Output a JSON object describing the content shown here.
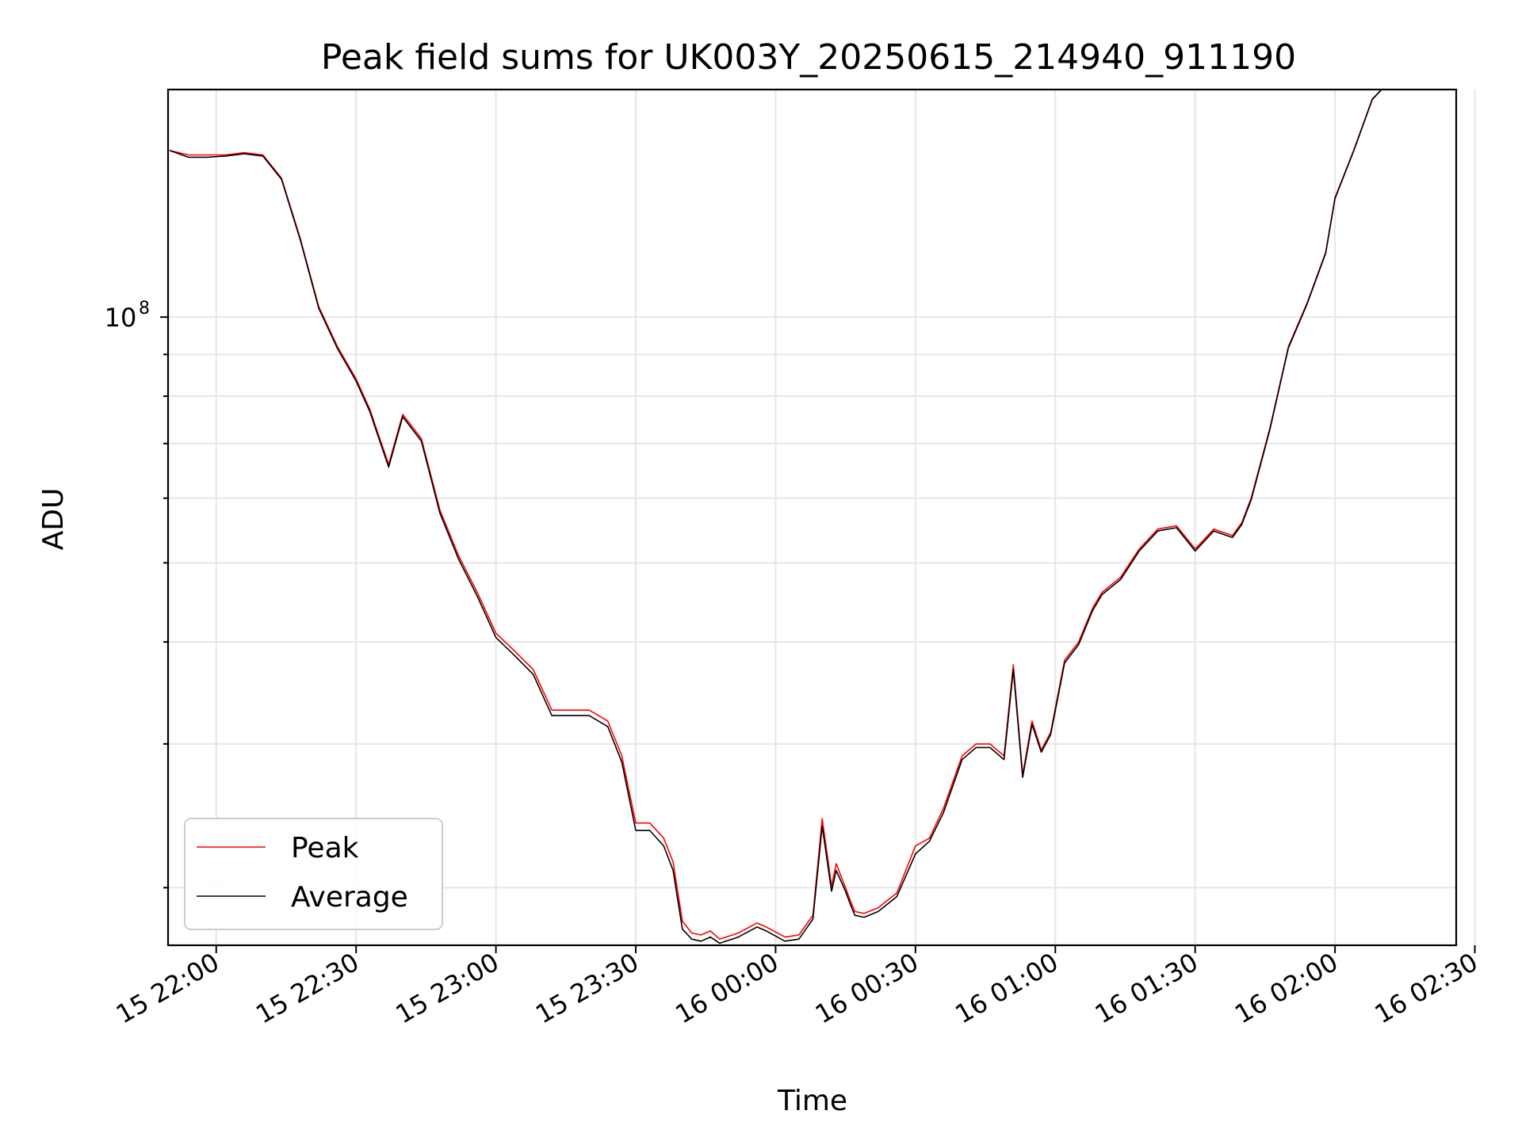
{
  "chart_data": {
    "type": "line",
    "title": "Peak field sums for UK003Y_20250615_214940_911190",
    "xlabel": "Time",
    "ylabel": "ADU",
    "yscale": "log",
    "grid": true,
    "legend_position": "lower-left",
    "xlim": [
      "2025-06-15T21:49:40",
      "2025-06-16T02:26:00"
    ],
    "ylim": [
      17000000,
      190000000
    ],
    "x_ticks": [
      "15 22:00",
      "15 22:30",
      "15 23:00",
      "15 23:30",
      "16 00:00",
      "16 00:30",
      "16 01:00",
      "16 01:30",
      "16 02:00",
      "16 02:30"
    ],
    "y_tick_label": "10",
    "y_tick_exponent": "8",
    "series": [
      {
        "name": "Peak",
        "color": "#ff0000",
        "x": [
          "2025-06-15T21:50",
          "2025-06-15T21:54",
          "2025-06-15T21:58",
          "2025-06-15T22:02",
          "2025-06-15T22:06",
          "2025-06-15T22:10",
          "2025-06-15T22:14",
          "2025-06-15T22:18",
          "2025-06-15T22:22",
          "2025-06-15T22:26",
          "2025-06-15T22:30",
          "2025-06-15T22:33",
          "2025-06-15T22:34",
          "2025-06-15T22:37",
          "2025-06-15T22:40",
          "2025-06-15T22:44",
          "2025-06-15T22:48",
          "2025-06-15T22:52",
          "2025-06-15T22:56",
          "2025-06-15T23:00",
          "2025-06-15T23:04",
          "2025-06-15T23:08",
          "2025-06-15T23:12",
          "2025-06-15T23:16",
          "2025-06-15T23:20",
          "2025-06-15T23:24",
          "2025-06-15T23:27",
          "2025-06-15T23:30",
          "2025-06-15T23:33",
          "2025-06-15T23:36",
          "2025-06-15T23:38",
          "2025-06-15T23:40",
          "2025-06-15T23:42",
          "2025-06-15T23:44",
          "2025-06-15T23:46",
          "2025-06-15T23:48",
          "2025-06-15T23:52",
          "2025-06-15T23:56",
          "2025-06-15T23:58",
          "2025-06-16T00:02",
          "2025-06-16T00:05",
          "2025-06-16T00:08",
          "2025-06-16T00:10",
          "2025-06-16T00:12",
          "2025-06-16T00:13",
          "2025-06-16T00:15",
          "2025-06-16T00:16",
          "2025-06-16T00:17",
          "2025-06-16T00:19",
          "2025-06-16T00:22",
          "2025-06-16T00:26",
          "2025-06-16T00:30",
          "2025-06-16T00:33",
          "2025-06-16T00:36",
          "2025-06-16T00:40",
          "2025-06-16T00:43",
          "2025-06-16T00:46",
          "2025-06-16T00:49",
          "2025-06-16T00:51",
          "2025-06-16T00:53",
          "2025-06-16T00:55",
          "2025-06-16T00:57",
          "2025-06-16T00:59",
          "2025-06-16T01:02",
          "2025-06-16T01:05",
          "2025-06-16T01:08",
          "2025-06-16T01:10",
          "2025-06-16T01:14",
          "2025-06-16T01:18",
          "2025-06-16T01:22",
          "2025-06-16T01:26",
          "2025-06-16T01:30",
          "2025-06-16T01:34",
          "2025-06-16T01:38",
          "2025-06-16T01:40",
          "2025-06-16T01:42",
          "2025-06-16T01:46",
          "2025-06-16T01:50",
          "2025-06-16T01:54",
          "2025-06-16T01:58",
          "2025-06-16T02:00",
          "2025-06-16T02:04",
          "2025-06-16T02:08",
          "2025-06-16T02:10",
          "2025-06-16T02:14",
          "2025-06-16T02:18",
          "2025-06-16T02:22",
          "2025-06-16T02:26"
        ],
        "values": [
          160000000,
          158000000,
          158000000,
          158000000,
          159000000,
          158000000,
          148000000,
          125000000,
          103000000,
          92000000,
          84000000,
          77000000,
          74000000,
          66000000,
          76000000,
          71000000,
          58000000,
          51000000,
          46000000,
          41000000,
          39000000,
          37000000,
          33000000,
          33000000,
          33000000,
          32000000,
          29000000,
          24000000,
          24000000,
          23000000,
          21500000,
          18200000,
          17600000,
          17500000,
          17700000,
          17300000,
          17600000,
          18100000,
          17900000,
          17400000,
          17500000,
          18500000,
          24300000,
          20100000,
          21400000,
          20000000,
          19300000,
          18700000,
          18600000,
          18900000,
          19700000,
          22500000,
          23000000,
          25000000,
          29000000,
          30000000,
          30000000,
          29000000,
          37500000,
          27500000,
          32000000,
          29500000,
          31000000,
          38000000,
          40000000,
          44000000,
          46000000,
          48000000,
          52000000,
          55000000,
          55500000,
          52000000,
          55000000,
          54000000,
          56000000,
          60000000,
          73000000,
          92000000,
          104000000,
          120000000,
          140000000,
          160000000,
          185000000,
          190000000,
          190000000,
          190000000,
          190000000,
          190000000
        ],
        "note": ""
      },
      {
        "name": "Average",
        "color": "#000000",
        "x": [
          "2025-06-15T21:50",
          "2025-06-15T21:54",
          "2025-06-15T21:58",
          "2025-06-15T22:02",
          "2025-06-15T22:06",
          "2025-06-15T22:10",
          "2025-06-15T22:14",
          "2025-06-15T22:18",
          "2025-06-15T22:22",
          "2025-06-15T22:26",
          "2025-06-15T22:30",
          "2025-06-15T22:33",
          "2025-06-15T22:34",
          "2025-06-15T22:37",
          "2025-06-15T22:40",
          "2025-06-15T22:44",
          "2025-06-15T22:48",
          "2025-06-15T22:52",
          "2025-06-15T22:56",
          "2025-06-15T23:00",
          "2025-06-15T23:04",
          "2025-06-15T23:08",
          "2025-06-15T23:12",
          "2025-06-15T23:16",
          "2025-06-15T23:20",
          "2025-06-15T23:24",
          "2025-06-15T23:27",
          "2025-06-15T23:30",
          "2025-06-15T23:33",
          "2025-06-15T23:36",
          "2025-06-15T23:38",
          "2025-06-15T23:40",
          "2025-06-15T23:42",
          "2025-06-15T23:44",
          "2025-06-15T23:46",
          "2025-06-15T23:48",
          "2025-06-15T23:52",
          "2025-06-15T23:56",
          "2025-06-15T23:58",
          "2025-06-16T00:02",
          "2025-06-16T00:05",
          "2025-06-16T00:08",
          "2025-06-16T00:10",
          "2025-06-16T00:12",
          "2025-06-16T00:13",
          "2025-06-16T00:15",
          "2025-06-16T00:16",
          "2025-06-16T00:17",
          "2025-06-16T00:19",
          "2025-06-16T00:22",
          "2025-06-16T00:26",
          "2025-06-16T00:30",
          "2025-06-16T00:33",
          "2025-06-16T00:36",
          "2025-06-16T00:40",
          "2025-06-16T00:43",
          "2025-06-16T00:46",
          "2025-06-16T00:49",
          "2025-06-16T00:51",
          "2025-06-16T00:53",
          "2025-06-16T00:55",
          "2025-06-16T00:57",
          "2025-06-16T00:59",
          "2025-06-16T01:02",
          "2025-06-16T01:05",
          "2025-06-16T01:08",
          "2025-06-16T01:10",
          "2025-06-16T01:14",
          "2025-06-16T01:18",
          "2025-06-16T01:22",
          "2025-06-16T01:26",
          "2025-06-16T01:30",
          "2025-06-16T01:34",
          "2025-06-16T01:38",
          "2025-06-16T01:40",
          "2025-06-16T01:42",
          "2025-06-16T01:46",
          "2025-06-16T01:50",
          "2025-06-16T01:54",
          "2025-06-16T01:58",
          "2025-06-16T02:00",
          "2025-06-16T02:04",
          "2025-06-16T02:08",
          "2025-06-16T02:10",
          "2025-06-16T02:14",
          "2025-06-16T02:18",
          "2025-06-16T02:22",
          "2025-06-16T02:26"
        ],
        "values": [
          160000000,
          157000000,
          157000000,
          157500000,
          158500000,
          157500000,
          147500000,
          124500000,
          102500000,
          91500000,
          83500000,
          76500000,
          73500000,
          65500000,
          75500000,
          70500000,
          57500000,
          50500000,
          45500000,
          40500000,
          38500000,
          36500000,
          32500000,
          32500000,
          32500000,
          31500000,
          28500000,
          23500000,
          23500000,
          22500000,
          21000000,
          17800000,
          17300000,
          17200000,
          17400000,
          17100000,
          17400000,
          17900000,
          17700000,
          17200000,
          17300000,
          18300000,
          23800000,
          19800000,
          21000000,
          19800000,
          19100000,
          18500000,
          18400000,
          18700000,
          19500000,
          22000000,
          22800000,
          24700000,
          28700000,
          29700000,
          29700000,
          28700000,
          37000000,
          27300000,
          31700000,
          29300000,
          30800000,
          37700000,
          39700000,
          43700000,
          45700000,
          47700000,
          51700000,
          54700000,
          55200000,
          51700000,
          54700000,
          53700000,
          55700000,
          59700000,
          72700000,
          91700000,
          103700000,
          119700000,
          139700000,
          159700000,
          184700000,
          190000000,
          190000000,
          190000000,
          190000000,
          190000000
        ]
      }
    ]
  }
}
